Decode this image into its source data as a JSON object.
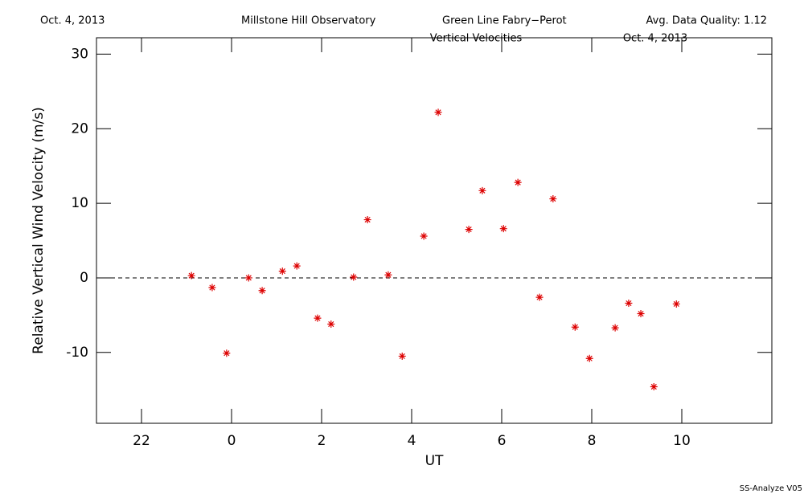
{
  "header": {
    "date": "Oct. 4, 2013",
    "observatory": "Millstone Hill Observatory",
    "instrument": "Green Line Fabry−Perot",
    "quality": "Avg. Data Quality: 1.12"
  },
  "footer": "SS-Analyze V05",
  "chart_data": {
    "type": "scatter",
    "title": "Vertical Velocities",
    "subtitle": "Oct. 4, 2013",
    "x_label": "UT",
    "y_label": "Relative Vertical Wind Velocity (m/s)",
    "color": "#dd0000",
    "reference_line": 0,
    "xlim": [
      -3,
      12
    ],
    "xticks": [
      {
        "value": -2,
        "label": "22"
      },
      0,
      2,
      4,
      6,
      8,
      10
    ],
    "ylim": [
      -19.5,
      32.2
    ],
    "yticks": [
      -10,
      0,
      10,
      20,
      30
    ],
    "x": [
      -0.89,
      -0.43,
      -0.11,
      0.38,
      0.68,
      1.13,
      1.45,
      1.91,
      2.21,
      2.71,
      3.02,
      3.48,
      3.79,
      4.27,
      4.59,
      5.27,
      5.57,
      6.04,
      6.36,
      6.84,
      7.14,
      7.63,
      7.95,
      8.52,
      8.82,
      9.09,
      9.38,
      9.88
    ],
    "values": [
      0.3,
      -1.3,
      -10.1,
      0.0,
      -1.7,
      0.9,
      1.6,
      -5.4,
      -6.2,
      0.1,
      7.8,
      0.4,
      -10.5,
      5.6,
      22.2,
      6.5,
      11.7,
      6.6,
      12.8,
      -2.6,
      10.6,
      -6.6,
      -10.8,
      -6.7,
      -3.4,
      -4.8,
      -14.6,
      -3.5
    ]
  }
}
